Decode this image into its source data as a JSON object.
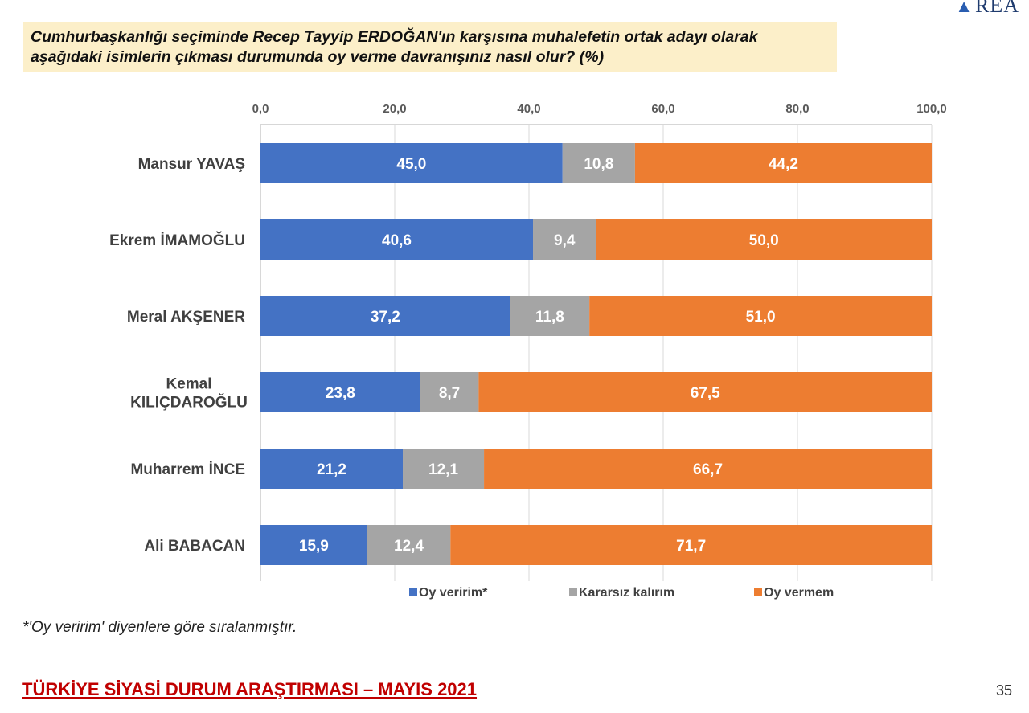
{
  "logo": {
    "text": "REA",
    "icon": "area-logo-mark"
  },
  "question": "Cumhurbaşkanlığı seçiminde Recep Tayyip ERDOĞAN'ın karşısına muhalefetin ortak adayı olarak aşağıdaki isimlerin çıkması durumunda oy verme davranışınız nasıl olur? (%)",
  "footnote": "*'Oy veririm' diyenlere göre sıralanmıştır.",
  "footer_title": "TÜRKİYE SİYASİ DURUM ARAŞTIRMASI – MAYIS 2021",
  "page_number": "35",
  "colors": {
    "question_bg": "#fcefc9",
    "series1": "#4472c4",
    "series2": "#a5a5a5",
    "series3": "#ed7d31",
    "footer": "#c00000"
  },
  "chart_data": {
    "type": "bar",
    "orientation": "horizontal",
    "stacked": true,
    "categories": [
      [
        "Mansur YAVAŞ"
      ],
      [
        "Ekrem İMAMOĞLU"
      ],
      [
        "Meral AKŞENER"
      ],
      [
        "Kemal",
        "KILIÇDAROĞLU"
      ],
      [
        "Muharrem İNCE"
      ],
      [
        "Ali BABACAN"
      ]
    ],
    "series": [
      {
        "name": "Oy veririm*",
        "color": "#4472c4",
        "values": [
          45.0,
          40.6,
          37.2,
          23.8,
          21.2,
          15.9
        ],
        "labels": [
          "45,0",
          "40,6",
          "37,2",
          "23,8",
          "21,2",
          "15,9"
        ]
      },
      {
        "name": "Kararsız kalırım",
        "color": "#a5a5a5",
        "values": [
          10.8,
          9.4,
          11.8,
          8.7,
          12.1,
          12.4
        ],
        "labels": [
          "10,8",
          "9,4",
          "11,8",
          "8,7",
          "12,1",
          "12,4"
        ]
      },
      {
        "name": "Oy vermem",
        "color": "#ed7d31",
        "values": [
          44.2,
          50.0,
          51.0,
          67.5,
          66.7,
          71.7
        ],
        "labels": [
          "44,2",
          "50,0",
          "51,0",
          "67,5",
          "66,7",
          "71,7"
        ]
      }
    ],
    "xlim": [
      0,
      100
    ],
    "xticks": [
      0,
      20,
      40,
      60,
      80,
      100
    ],
    "xtick_labels": [
      "0,0",
      "20,0",
      "40,0",
      "60,0",
      "80,0",
      "100,0"
    ],
    "x_axis_position": "top",
    "grid": true,
    "legend_position": "bottom"
  }
}
